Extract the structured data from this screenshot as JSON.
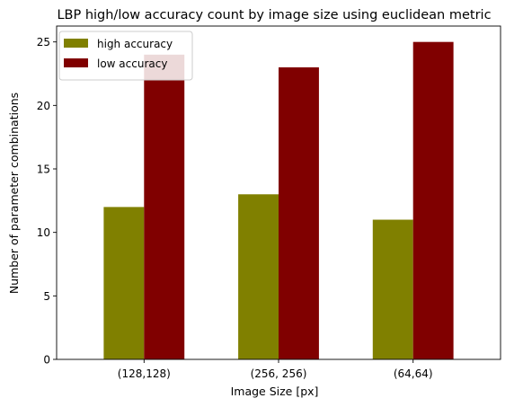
{
  "chart_data": {
    "type": "bar",
    "title": "LBP high/low accuracy count by image size using euclidean metric",
    "xlabel": "Image Size [px]",
    "ylabel": "Number of parameter combinations",
    "categories": [
      "(128,128)",
      "(256, 256)",
      "(64,64)"
    ],
    "series": [
      {
        "name": "high accuracy",
        "values": [
          12,
          13,
          11
        ],
        "color": "#808000"
      },
      {
        "name": "low accuracy",
        "values": [
          24,
          23,
          25
        ],
        "color": "#800000"
      }
    ],
    "ylim": [
      0,
      26.25
    ],
    "yticks": [
      0,
      5,
      10,
      15,
      20,
      25
    ],
    "grid": false,
    "legend_position": "top-left"
  }
}
